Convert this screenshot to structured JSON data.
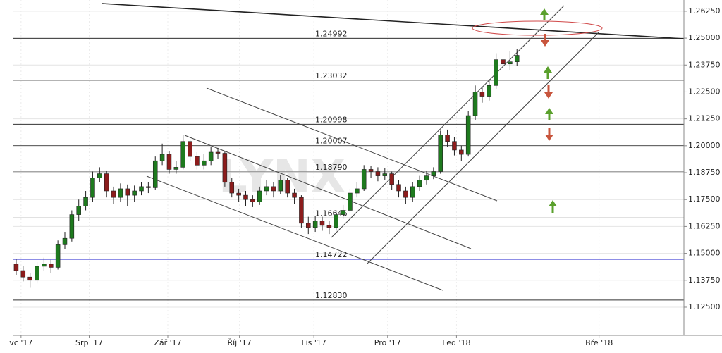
{
  "chart_data": {
    "type": "candlestick",
    "x": [
      0,
      1,
      2,
      3,
      4,
      5,
      6,
      7,
      8,
      9,
      10,
      11,
      12,
      13,
      14,
      15,
      16,
      17,
      18,
      19,
      20,
      21,
      22,
      23,
      24,
      25,
      26,
      27,
      28,
      29,
      30,
      31,
      32,
      33,
      34,
      35,
      36,
      37,
      38,
      39,
      40,
      41,
      42,
      43,
      44,
      45,
      46,
      47,
      48,
      49,
      50,
      51,
      52,
      53,
      54,
      55,
      56,
      57,
      58,
      59,
      60,
      61,
      62,
      63,
      64,
      65,
      66,
      67,
      68,
      69,
      70,
      71,
      72
    ],
    "open": [
      1.145,
      1.142,
      1.139,
      1.1375,
      1.144,
      1.145,
      1.1435,
      1.154,
      1.157,
      1.168,
      1.172,
      1.176,
      1.185,
      1.187,
      1.179,
      1.176,
      1.18,
      1.177,
      1.179,
      1.181,
      1.1805,
      1.193,
      1.196,
      1.189,
      1.19,
      1.202,
      1.195,
      1.191,
      1.193,
      1.197,
      1.1965,
      1.183,
      1.178,
      1.177,
      1.175,
      1.174,
      1.179,
      1.181,
      1.179,
      1.184,
      1.178,
      1.176,
      1.164,
      1.162,
      1.165,
      1.163,
      1.162,
      1.168,
      1.17,
      1.178,
      1.18,
      1.189,
      1.188,
      1.186,
      1.187,
      1.182,
      1.179,
      1.176,
      1.181,
      1.184,
      1.186,
      1.188,
      1.205,
      1.202,
      1.198,
      1.196,
      1.214,
      1.225,
      1.223,
      1.228,
      1.24,
      1.238,
      1.239
    ],
    "high": [
      1.1475,
      1.144,
      1.141,
      1.146,
      1.148,
      1.147,
      1.156,
      1.16,
      1.17,
      1.175,
      1.179,
      1.188,
      1.19,
      1.1885,
      1.181,
      1.1825,
      1.182,
      1.1815,
      1.183,
      1.183,
      1.195,
      1.201,
      1.1975,
      1.193,
      1.205,
      1.203,
      1.197,
      1.196,
      1.1995,
      1.199,
      1.1975,
      1.185,
      1.18,
      1.179,
      1.177,
      1.181,
      1.184,
      1.183,
      1.1865,
      1.185,
      1.18,
      1.177,
      1.167,
      1.1675,
      1.167,
      1.165,
      1.17,
      1.1725,
      1.18,
      1.183,
      1.191,
      1.1905,
      1.19,
      1.1895,
      1.188,
      1.184,
      1.181,
      1.183,
      1.186,
      1.1885,
      1.19,
      1.207,
      1.2075,
      1.204,
      1.2,
      1.216,
      1.228,
      1.2275,
      1.231,
      1.243,
      1.254,
      1.244,
      1.245
    ],
    "low": [
      1.14,
      1.137,
      1.134,
      1.136,
      1.142,
      1.141,
      1.1425,
      1.152,
      1.1555,
      1.165,
      1.17,
      1.174,
      1.183,
      1.176,
      1.173,
      1.174,
      1.172,
      1.174,
      1.177,
      1.178,
      1.1795,
      1.191,
      1.187,
      1.187,
      1.189,
      1.193,
      1.189,
      1.189,
      1.191,
      1.194,
      1.181,
      1.176,
      1.174,
      1.172,
      1.1715,
      1.1725,
      1.177,
      1.176,
      1.1775,
      1.176,
      1.173,
      1.162,
      1.159,
      1.16,
      1.1605,
      1.159,
      1.1605,
      1.166,
      1.169,
      1.176,
      1.179,
      1.185,
      1.1835,
      1.184,
      1.1795,
      1.176,
      1.173,
      1.174,
      1.179,
      1.182,
      1.1845,
      1.187,
      1.1995,
      1.1955,
      1.193,
      1.195,
      1.212,
      1.22,
      1.221,
      1.2265,
      1.236,
      1.235,
      1.237
    ],
    "close": [
      1.142,
      1.139,
      1.1375,
      1.144,
      1.145,
      1.1435,
      1.154,
      1.157,
      1.168,
      1.172,
      1.176,
      1.185,
      1.187,
      1.179,
      1.176,
      1.18,
      1.177,
      1.179,
      1.181,
      1.1805,
      1.193,
      1.196,
      1.189,
      1.19,
      1.202,
      1.195,
      1.191,
      1.193,
      1.197,
      1.1965,
      1.183,
      1.178,
      1.177,
      1.175,
      1.174,
      1.179,
      1.181,
      1.179,
      1.184,
      1.178,
      1.176,
      1.164,
      1.162,
      1.165,
      1.163,
      1.162,
      1.168,
      1.17,
      1.178,
      1.18,
      1.189,
      1.188,
      1.186,
      1.187,
      1.182,
      1.179,
      1.176,
      1.181,
      1.184,
      1.186,
      1.188,
      1.205,
      1.202,
      1.198,
      1.196,
      1.214,
      1.225,
      1.223,
      1.228,
      1.24,
      1.238,
      1.239,
      1.242
    ],
    "up_color": "#1e7a1e",
    "down_color": "#8c1c1c",
    "xlim": [
      -0.5,
      96
    ],
    "xticks": [
      {
        "value": 0.7,
        "label": "vc '17"
      },
      {
        "value": 10.5,
        "label": "Srp '17"
      },
      {
        "value": 21.8,
        "label": "Zář '17"
      },
      {
        "value": 32.1,
        "label": "Říj '17"
      },
      {
        "value": 42.8,
        "label": "Lis '17"
      },
      {
        "value": 53.4,
        "label": "Pro '17"
      },
      {
        "value": 63.3,
        "label": "Led '18"
      },
      {
        "value": 83.8,
        "label": "Bře '18"
      }
    ],
    "ylim": [
      1.1119,
      1.2677
    ],
    "yticks": [
      {
        "value": 1.2625,
        "label": "1.26250"
      },
      {
        "value": 1.25,
        "label": "1.25000"
      },
      {
        "value": 1.2375,
        "label": "1.23750"
      },
      {
        "value": 1.225,
        "label": "1.22500"
      },
      {
        "value": 1.2125,
        "label": "1.21250"
      },
      {
        "value": 1.2,
        "label": "1.20000"
      },
      {
        "value": 1.1875,
        "label": "1.18750"
      },
      {
        "value": 1.175,
        "label": "1.17500"
      },
      {
        "value": 1.1625,
        "label": "1.16250"
      },
      {
        "value": 1.15,
        "label": "1.15000"
      },
      {
        "value": 1.1375,
        "label": "1.13750"
      },
      {
        "value": 1.125,
        "label": "1.12500"
      }
    ],
    "grid": true,
    "levels": [
      {
        "value": 1.24992,
        "color": "#333333"
      },
      {
        "value": 1.23032,
        "color": "#9a9a9a"
      },
      {
        "value": 1.20998,
        "color": "#333333"
      },
      {
        "value": 1.20007,
        "color": "#555555"
      },
      {
        "value": {
          "value": 1.1879,
          "label": "1.18790"
        },
        "color": "#888888"
      },
      {
        "value": 1.16646,
        "color": "#888888"
      },
      {
        "value": 1.14722,
        "color": "#4a4ad8"
      },
      {
        "value": {
          "value": 1.1283,
          "label": "1.12830"
        },
        "color": "#333333"
      }
    ],
    "watermark": "LYNX"
  }
}
